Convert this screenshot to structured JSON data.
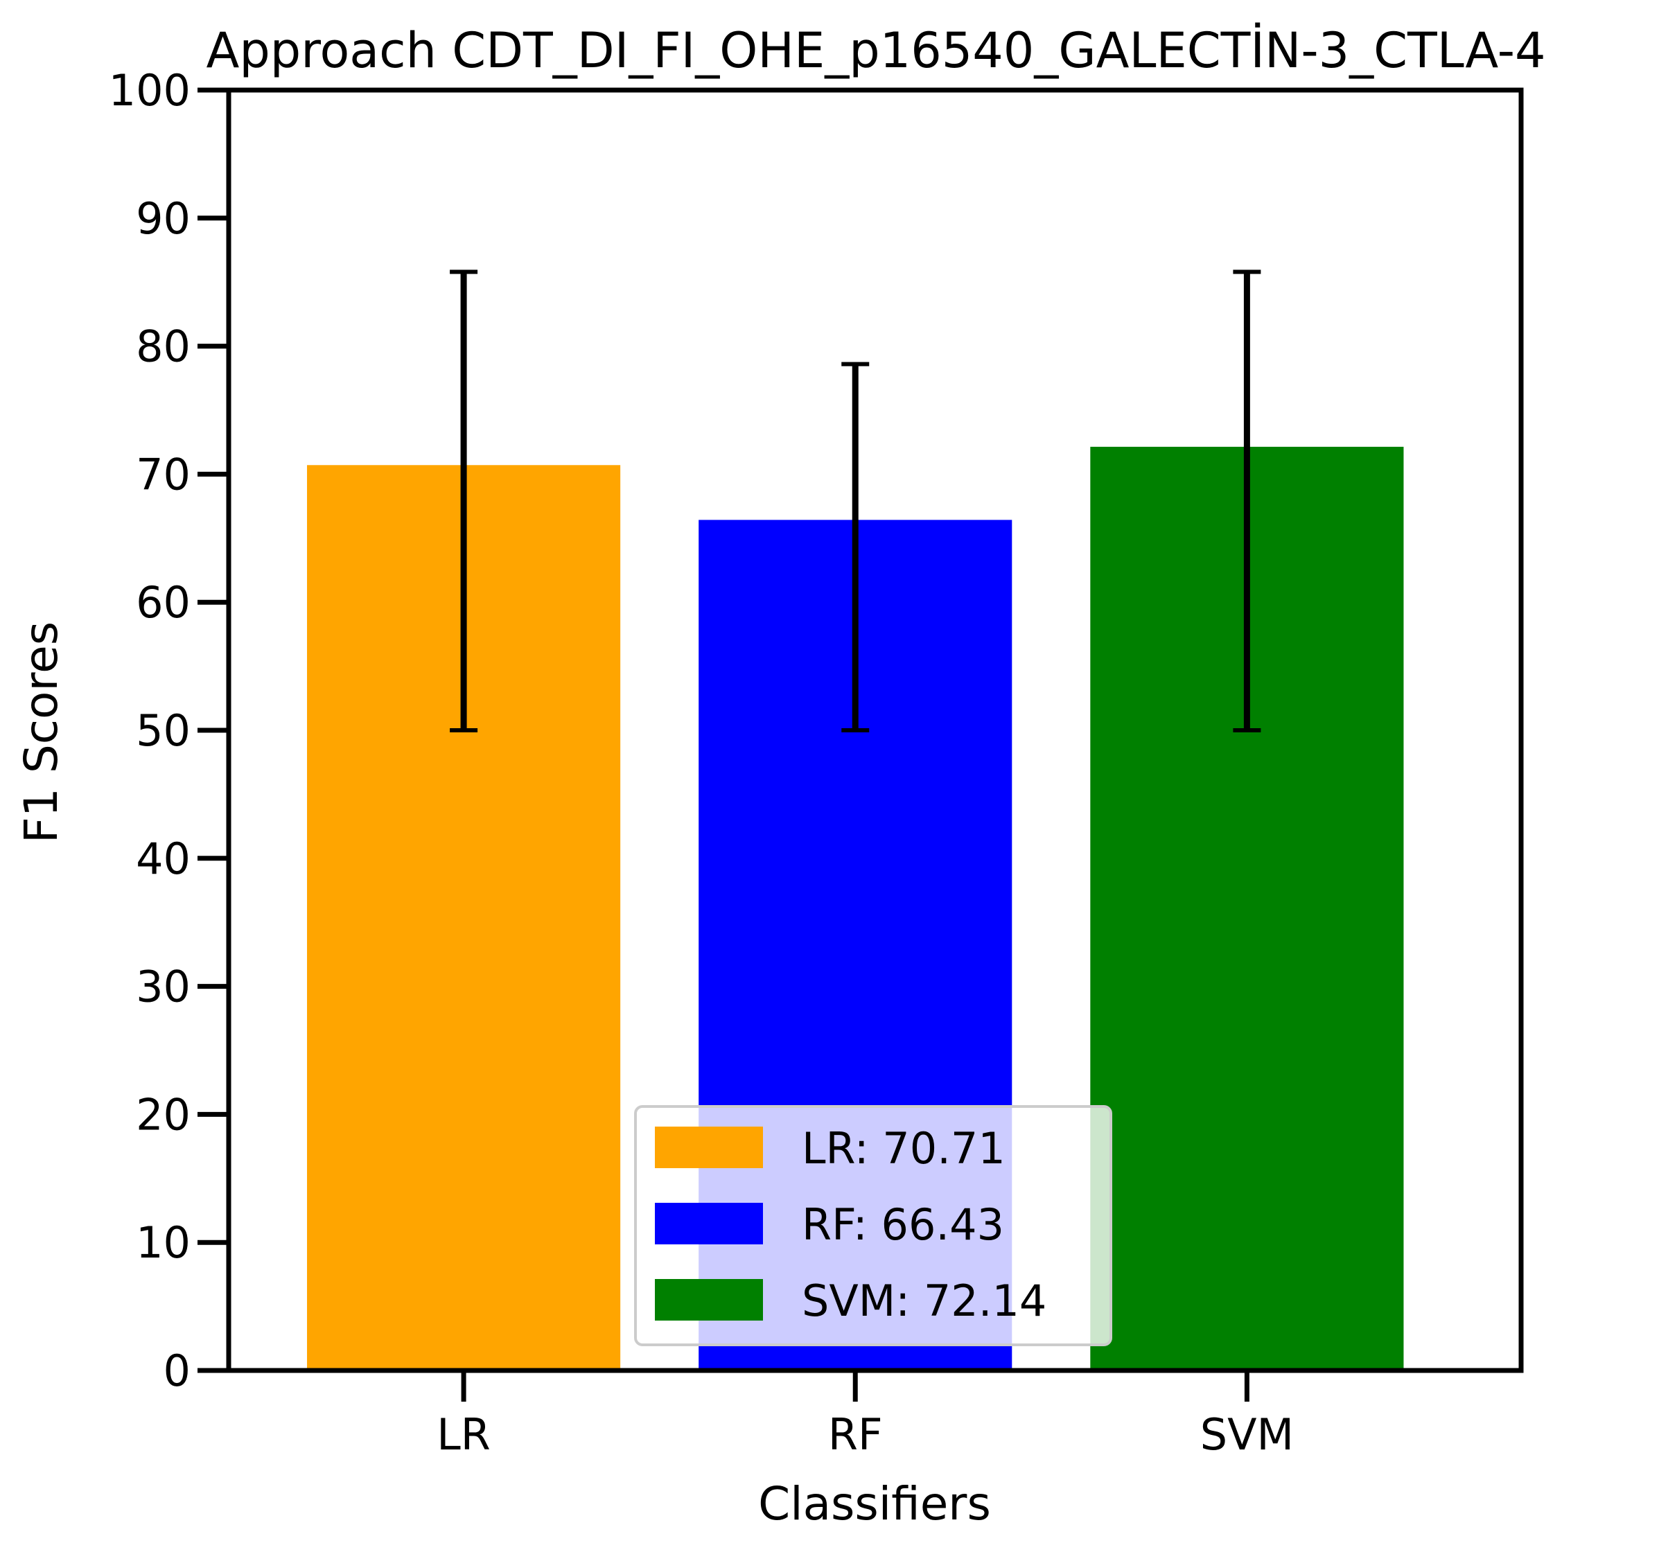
{
  "chart_data": {
    "type": "bar",
    "title": "Approach CDT_DI_FI_OHE_p16540_GALECTİN-3_CTLA-4",
    "xlabel": "Classifiers",
    "ylabel": "F1 Scores",
    "ylim": [
      0,
      100
    ],
    "yticks": [
      0,
      10,
      20,
      30,
      40,
      50,
      60,
      70,
      80,
      90,
      100
    ],
    "categories": [
      "LR",
      "RF",
      "SVM"
    ],
    "values": [
      70.71,
      66.43,
      72.14
    ],
    "error_low": [
      50,
      50,
      50
    ],
    "error_high": [
      85.8,
      78.6,
      85.8
    ],
    "colors": [
      "#ffa500",
      "#0000ff",
      "#008000"
    ],
    "grid": false,
    "legend": {
      "placement": "lower-center",
      "entries": [
        "LR: 70.71",
        "RF: 66.43",
        "SVM: 72.14"
      ]
    }
  }
}
